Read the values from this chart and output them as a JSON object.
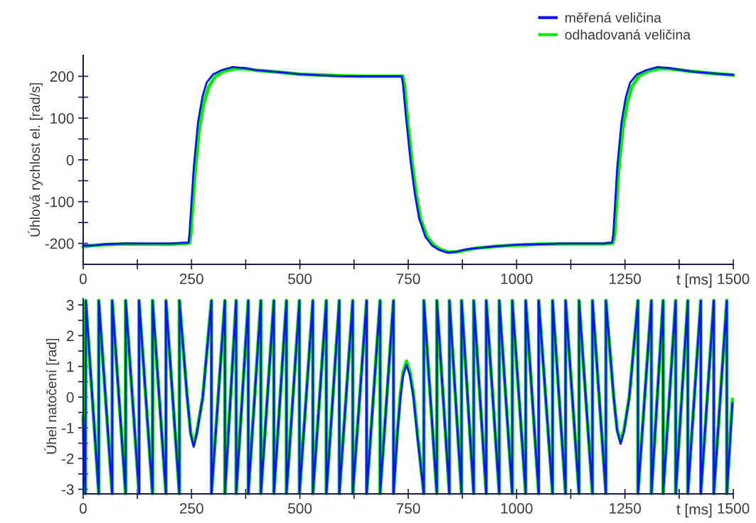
{
  "chart_data": [
    {
      "type": "line",
      "xlabel": "t [ms]",
      "ylabel": "Úhlová rychlost el. [rad/s]",
      "xlim": [
        0,
        1500
      ],
      "ylim": [
        -250,
        250
      ],
      "xticks": [
        0,
        {
          "value": 125,
          "label": null
        },
        250,
        {
          "value": 375,
          "label": null
        },
        500,
        {
          "value": 625,
          "label": null
        },
        750,
        {
          "value": 875,
          "label": null
        },
        1000,
        {
          "value": 1125,
          "label": null
        },
        1250,
        {
          "value": 1375,
          "label": null
        },
        1500
      ],
      "yticks": [
        -200,
        {
          "value": -150,
          "label": null
        },
        -100,
        {
          "value": -50,
          "label": null
        },
        0,
        {
          "value": 50,
          "label": null
        },
        100,
        {
          "value": 150,
          "label": null
        },
        200
      ],
      "legend": "top right",
      "series": [
        {
          "name": "odhadovaná veličina",
          "color": "#00ee00",
          "x": [
            0,
            20,
            50,
            100,
            200,
            245,
            248,
            258,
            268,
            278,
            290,
            305,
            325,
            350,
            375,
            400,
            450,
            500,
            550,
            600,
            650,
            700,
            737,
            741,
            748,
            758,
            768,
            778,
            793,
            808,
            823,
            843,
            863,
            883,
            903,
            950,
            1000,
            1050,
            1100,
            1200,
            1222,
            1226,
            1235,
            1245,
            1255,
            1266,
            1282,
            1303,
            1328,
            1353,
            1400,
            1450,
            1500
          ],
          "values": [
            -208,
            -205,
            -203,
            -201,
            -202,
            -199,
            -180,
            -30,
            75,
            135,
            175,
            200,
            212,
            218,
            218,
            214,
            210,
            205,
            203,
            201,
            200,
            200,
            200,
            180,
            100,
            0,
            -80,
            -140,
            -183,
            -203,
            -214,
            -221,
            -220,
            -216,
            -212,
            -207,
            -204,
            -202,
            -201,
            -201,
            -199,
            -180,
            -30,
            75,
            135,
            175,
            200,
            212,
            218,
            218,
            212,
            207,
            203
          ]
        },
        {
          "name": "měřená veličina",
          "color": "#0a14f0",
          "x": [
            0,
            20,
            50,
            100,
            200,
            243,
            245,
            255,
            265,
            275,
            285,
            300,
            320,
            345,
            370,
            400,
            450,
            500,
            550,
            600,
            650,
            700,
            735,
            738,
            745,
            755,
            765,
            775,
            790,
            805,
            820,
            840,
            860,
            880,
            900,
            950,
            1000,
            1050,
            1100,
            1200,
            1220,
            1223,
            1232,
            1242,
            1252,
            1262,
            1278,
            1300,
            1325,
            1350,
            1400,
            1450,
            1500
          ],
          "values": [
            -205,
            -205,
            -202,
            -200,
            -200,
            -198,
            -180,
            -20,
            90,
            150,
            185,
            205,
            215,
            222,
            220,
            215,
            210,
            205,
            202,
            200,
            200,
            200,
            200,
            180,
            100,
            0,
            -80,
            -140,
            -185,
            -205,
            -215,
            -222,
            -220,
            -215,
            -212,
            -207,
            -203,
            -202,
            -200,
            -200,
            -198,
            -180,
            -20,
            90,
            150,
            185,
            205,
            215,
            222,
            220,
            212,
            207,
            203
          ]
        }
      ]
    },
    {
      "type": "line",
      "xlabel": "t [ms]",
      "ylabel": "Úhel natočení [rad]",
      "xlim": [
        0,
        1500
      ],
      "ylim": [
        -3.15,
        3.2
      ],
      "xticks": [
        0,
        {
          "value": 125,
          "label": null
        },
        250,
        {
          "value": 375,
          "label": null
        },
        500,
        {
          "value": 625,
          "label": null
        },
        750,
        {
          "value": 875,
          "label": null
        },
        1000,
        {
          "value": 1125,
          "label": null
        },
        1250,
        {
          "value": 1375,
          "label": null
        },
        1500
      ],
      "yticks": [
        -3,
        {
          "value": -2.5,
          "label": null
        },
        -2,
        {
          "value": -1.5,
          "label": null
        },
        -1,
        {
          "value": -0.5,
          "label": null
        },
        0,
        {
          "value": 0.5,
          "label": null
        },
        1,
        {
          "value": 1.5,
          "label": null
        },
        2,
        {
          "value": 2.5,
          "label": null
        },
        3
      ],
      "series": [
        {
          "color": "#00ee00",
          "x": [
            0,
            5,
            6,
            36,
            36,
            67,
            67,
            98,
            98,
            129,
            129,
            160,
            160,
            191,
            191,
            222,
            222,
            240,
            248,
            255,
            262,
            276,
            296,
            296,
            327,
            327,
            353,
            353,
            381,
            381,
            410,
            410,
            440,
            440,
            469,
            469,
            499,
            499,
            530,
            530,
            561,
            561,
            591,
            591,
            622,
            622,
            654,
            654,
            685,
            685,
            716,
            716,
            725,
            732,
            738,
            746,
            754,
            762,
            772,
            786,
            786,
            816,
            816,
            845,
            845,
            873,
            873,
            901,
            901,
            930,
            930,
            960,
            960,
            990,
            990,
            1021,
            1021,
            1051,
            1051,
            1083,
            1083,
            1113,
            1113,
            1144,
            1144,
            1175,
            1175,
            1206,
            1206,
            1224,
            1232,
            1240,
            1248,
            1260,
            1280,
            1280,
            1311,
            1311,
            1338,
            1338,
            1367,
            1367,
            1395,
            1395,
            1425,
            1425,
            1455,
            1455,
            1485,
            1485,
            1498
          ],
          "values": [
            -0.6,
            -3.14,
            3.14,
            -3.14,
            3.14,
            -3.14,
            3.14,
            -3.14,
            3.14,
            -3.14,
            3.14,
            -3.14,
            3.14,
            -3.14,
            3.14,
            -3.14,
            3.14,
            0,
            -1.15,
            -1.55,
            -1.15,
            0,
            3.14,
            -3.14,
            3.14,
            -3.14,
            3.14,
            -3.14,
            3.14,
            -3.14,
            3.14,
            -3.14,
            3.14,
            -3.14,
            3.14,
            -3.14,
            3.14,
            -3.14,
            3.14,
            -3.14,
            3.14,
            -3.14,
            3.14,
            -3.14,
            3.14,
            -3.14,
            3.14,
            -3.14,
            3.14,
            -3.14,
            3.14,
            -3.14,
            -1.1,
            0.1,
            0.8,
            1.17,
            0.8,
            0.1,
            -1.3,
            -3.14,
            3.14,
            -3.14,
            3.14,
            -3.14,
            3.14,
            -3.14,
            3.14,
            -3.14,
            3.14,
            -3.14,
            3.14,
            -3.14,
            3.14,
            -3.14,
            3.14,
            -3.14,
            3.14,
            -3.14,
            3.14,
            -3.14,
            3.14,
            -3.14,
            3.14,
            -3.14,
            3.14,
            -3.14,
            3.14,
            -3.14,
            3.14,
            0,
            -1.05,
            -1.45,
            -1.05,
            0,
            3.14,
            -3.14,
            3.14,
            -3.14,
            3.14,
            -3.14,
            3.14,
            -3.14,
            3.14,
            -3.14,
            3.14,
            -3.14,
            3.14,
            -3.14,
            3.14,
            -3.14,
            -0.07
          ]
        },
        {
          "color": "#0a14f0",
          "x": [
            0,
            5,
            6,
            36,
            36,
            67,
            67,
            98,
            98,
            129,
            129,
            160,
            160,
            191,
            191,
            222,
            222,
            240,
            248,
            255,
            262,
            276,
            296,
            296,
            327,
            327,
            353,
            353,
            381,
            381,
            410,
            410,
            440,
            440,
            469,
            469,
            499,
            499,
            530,
            530,
            561,
            561,
            591,
            591,
            622,
            622,
            654,
            654,
            685,
            685,
            716,
            716,
            725,
            732,
            738,
            746,
            754,
            762,
            772,
            786,
            786,
            816,
            816,
            845,
            845,
            873,
            873,
            901,
            901,
            930,
            930,
            960,
            960,
            990,
            990,
            1021,
            1021,
            1051,
            1051,
            1083,
            1083,
            1113,
            1113,
            1144,
            1144,
            1175,
            1175,
            1206,
            1206,
            1224,
            1232,
            1240,
            1248,
            1260,
            1280,
            1280,
            1311,
            1311,
            1338,
            1338,
            1367,
            1367,
            1395,
            1395,
            1425,
            1425,
            1455,
            1455,
            1485,
            1485,
            1498
          ],
          "values": [
            -0.68,
            -3.14,
            3.14,
            -3.14,
            3.14,
            -3.14,
            3.14,
            -3.14,
            3.14,
            -3.14,
            3.14,
            -3.14,
            3.14,
            -3.14,
            3.14,
            -3.14,
            3.14,
            0,
            -1.2,
            -1.62,
            -1.2,
            0,
            3.14,
            -3.14,
            3.14,
            -3.14,
            3.14,
            -3.14,
            3.14,
            -3.14,
            3.14,
            -3.14,
            3.14,
            -3.14,
            3.14,
            -3.14,
            3.14,
            -3.14,
            3.14,
            -3.14,
            3.14,
            -3.14,
            3.14,
            -3.14,
            3.14,
            -3.14,
            3.14,
            -3.14,
            3.14,
            -3.14,
            3.14,
            -3.14,
            -1.2,
            0,
            0.7,
            1.05,
            0.7,
            0,
            -1.4,
            -3.14,
            3.14,
            -3.14,
            3.14,
            -3.14,
            3.14,
            -3.14,
            3.14,
            -3.14,
            3.14,
            -3.14,
            3.14,
            -3.14,
            3.14,
            -3.14,
            3.14,
            -3.14,
            3.14,
            -3.14,
            3.14,
            -3.14,
            3.14,
            -3.14,
            3.14,
            -3.14,
            3.14,
            -3.14,
            3.14,
            -3.14,
            3.14,
            0,
            -1.1,
            -1.52,
            -1.1,
            0,
            3.14,
            -3.14,
            3.14,
            -3.14,
            3.14,
            -3.14,
            3.14,
            -3.14,
            3.14,
            -3.14,
            3.14,
            -3.14,
            3.14,
            -3.14,
            3.14,
            -3.14,
            -0.19
          ]
        }
      ]
    }
  ]
}
